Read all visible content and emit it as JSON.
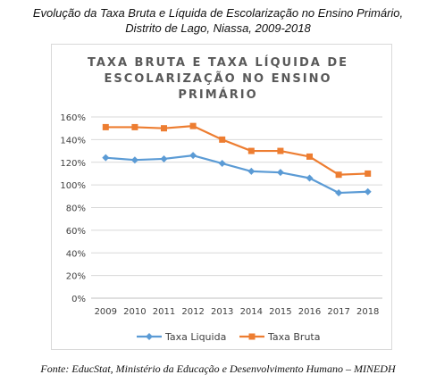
{
  "caption": {
    "line1": "Evolução da Taxa Bruta e Líquida de Escolarização no Ensino Primário,",
    "line2": "Distrito de Lago, Niassa, 2009-2018"
  },
  "source": "Fonte: EducStat, Ministério da Educação e Desenvolvimento Humano – MINEDH",
  "chart_data": {
    "type": "line",
    "title_lines": [
      "TAXA BRUTA E TAXA LÍQUIDA DE",
      "ESCOLARIZAÇÃO NO ENSINO",
      "PRIMÁRIO"
    ],
    "categories": [
      "2009",
      "2010",
      "2011",
      "2012",
      "2013",
      "2014",
      "2015",
      "2016",
      "2017",
      "2018"
    ],
    "yticks": [
      "0%",
      "20%",
      "40%",
      "60%",
      "80%",
      "100%",
      "120%",
      "140%",
      "160%"
    ],
    "ylim": [
      0,
      160
    ],
    "grid": true,
    "legend_position": "bottom",
    "series": [
      {
        "name": "Taxa Liquida",
        "color": "#5b9bd5",
        "marker": "diamond",
        "values": [
          124,
          122,
          123,
          126,
          119,
          112,
          111,
          106,
          93,
          94
        ]
      },
      {
        "name": "Taxa Bruta",
        "color": "#ed7d31",
        "marker": "square",
        "values": [
          151,
          151,
          150,
          152,
          140,
          130,
          130,
          125,
          109,
          110
        ]
      }
    ]
  }
}
